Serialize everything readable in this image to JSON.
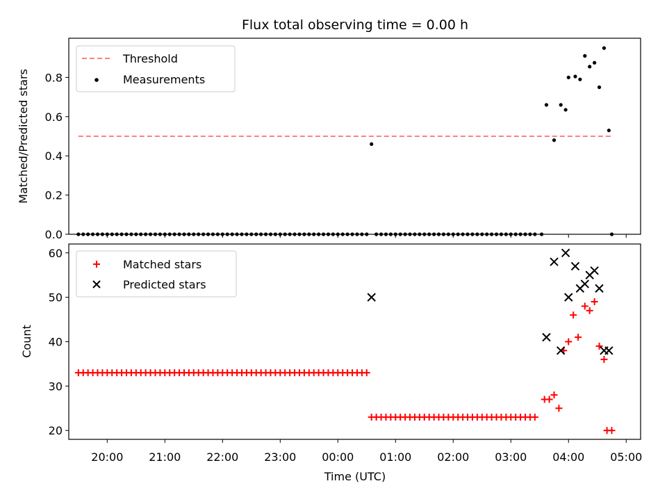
{
  "chart_data": [
    {
      "type": "scatter",
      "title": "Flux total observing time = 0.00 h",
      "xlabel": "",
      "ylabel": "Matched/Predicted stars",
      "ylim": [
        0,
        1.0
      ],
      "yticks": [
        "0.0",
        "0.2",
        "0.4",
        "0.6",
        "0.8"
      ],
      "legend": {
        "placement": "top-left",
        "entries": [
          "Threshold",
          "Measurements"
        ]
      },
      "threshold": {
        "name": "Threshold",
        "y": 0.5,
        "x_start": "19:30",
        "x_end": "04:45",
        "color": "#ff7f7f",
        "style": "dashed"
      },
      "series": [
        {
          "name": "Measurements",
          "color": "#000000",
          "marker": "dot",
          "points": [
            [
              "00:35",
              0.46
            ],
            [
              "03:37",
              0.66
            ],
            [
              "03:45",
              0.48
            ],
            [
              "03:52",
              0.66
            ],
            [
              "03:57",
              0.635
            ],
            [
              "04:00",
              0.8
            ],
            [
              "04:07",
              0.805
            ],
            [
              "04:12",
              0.79
            ],
            [
              "04:17",
              0.91
            ],
            [
              "04:22",
              0.855
            ],
            [
              "04:27",
              0.875
            ],
            [
              "04:32",
              0.75
            ],
            [
              "04:37",
              0.95
            ],
            [
              "04:42",
              0.53
            ],
            [
              "04:45",
              0.0
            ]
          ],
          "zero_runs": [
            {
              "start": "19:30",
              "end": "00:30",
              "step_min": 5,
              "y": 0.0
            },
            {
              "start": "00:40",
              "end": "03:25",
              "step_min": 5,
              "y": 0.0
            },
            {
              "start": "03:32",
              "end": "03:32",
              "step_min": 5,
              "y": 0.0
            }
          ]
        }
      ]
    },
    {
      "type": "scatter",
      "title": "",
      "xlabel": "Time (UTC)",
      "ylabel": "Count",
      "ylim": [
        18,
        62
      ],
      "yticks": [
        "20",
        "30",
        "40",
        "50",
        "60"
      ],
      "xticks": [
        "20:00",
        "21:00",
        "22:00",
        "23:00",
        "00:00",
        "01:00",
        "02:00",
        "03:00",
        "04:00",
        "05:00"
      ],
      "xlim": [
        "19:20",
        "05:15"
      ],
      "legend": {
        "placement": "top-left",
        "entries": [
          "Matched stars",
          "Predicted stars"
        ]
      },
      "series": [
        {
          "name": "Matched stars",
          "color": "#ff0000",
          "marker": "plus",
          "points": [
            [
              "03:35",
              27
            ],
            [
              "03:40",
              27
            ],
            [
              "03:45",
              28
            ],
            [
              "03:50",
              25
            ],
            [
              "03:55",
              38
            ],
            [
              "04:00",
              40
            ],
            [
              "04:05",
              46
            ],
            [
              "04:10",
              41
            ],
            [
              "04:17",
              48
            ],
            [
              "04:22",
              47
            ],
            [
              "04:27",
              49
            ],
            [
              "04:32",
              39
            ],
            [
              "04:37",
              36
            ],
            [
              "04:40",
              20
            ],
            [
              "04:45",
              20
            ]
          ],
          "runs": [
            {
              "start": "19:30",
              "end": "00:30",
              "step_min": 5,
              "y": 33
            },
            {
              "start": "00:35",
              "end": "03:25",
              "step_min": 5,
              "y": 23
            }
          ]
        },
        {
          "name": "Predicted stars",
          "color": "#000000",
          "marker": "x",
          "points": [
            [
              "00:35",
              50
            ],
            [
              "03:37",
              41
            ],
            [
              "03:45",
              58
            ],
            [
              "03:52",
              38
            ],
            [
              "03:57",
              60
            ],
            [
              "04:00",
              50
            ],
            [
              "04:07",
              57
            ],
            [
              "04:12",
              52
            ],
            [
              "04:17",
              53
            ],
            [
              "04:22",
              55
            ],
            [
              "04:27",
              56
            ],
            [
              "04:32",
              52
            ],
            [
              "04:37",
              38
            ],
            [
              "04:42",
              38
            ]
          ]
        }
      ]
    }
  ]
}
